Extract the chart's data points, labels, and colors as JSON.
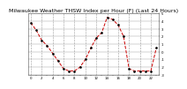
{
  "title": "Milwaukee Weather THSW Index per Hour (F) (Last 24 Hours)",
  "title_fontsize": 4.5,
  "background_color": "#ffffff",
  "plot_bg_color": "#ffffff",
  "grid_color": "#999999",
  "line_color": "#cc0000",
  "marker_color": "#000000",
  "ylim": [
    -3,
    5
  ],
  "yticks": [
    -3,
    -2,
    -1,
    0,
    1,
    2,
    3,
    4,
    5
  ],
  "ytick_labels": [
    "-3",
    "-2",
    "-1",
    "0",
    "1",
    "2",
    "3",
    "4",
    "5"
  ],
  "hours": [
    0,
    1,
    2,
    3,
    4,
    5,
    6,
    7,
    8,
    9,
    10,
    11,
    12,
    13,
    14,
    15,
    16,
    17,
    18,
    19,
    20,
    21,
    22,
    23
  ],
  "values": [
    3.8,
    2.8,
    1.5,
    0.8,
    -0.2,
    -1.2,
    -2.2,
    -2.5,
    -2.5,
    -2.0,
    -1.0,
    0.5,
    1.8,
    2.5,
    4.5,
    4.2,
    3.5,
    2.0,
    -2.2,
    -2.5,
    -2.5,
    -2.5,
    -2.5,
    0.5
  ],
  "xtick_hours": [
    0,
    1,
    2,
    3,
    4,
    5,
    6,
    7,
    8,
    9,
    10,
    11,
    12,
    13,
    14,
    15,
    16,
    17,
    18,
    19,
    20,
    21,
    22,
    23
  ],
  "xtick_labels": [
    "0",
    "",
    "2",
    "",
    "4",
    "",
    "6",
    "",
    "8",
    "",
    "10",
    "",
    "12",
    "",
    "14",
    "",
    "16",
    "",
    "18",
    "",
    "20",
    "",
    "22",
    ""
  ]
}
